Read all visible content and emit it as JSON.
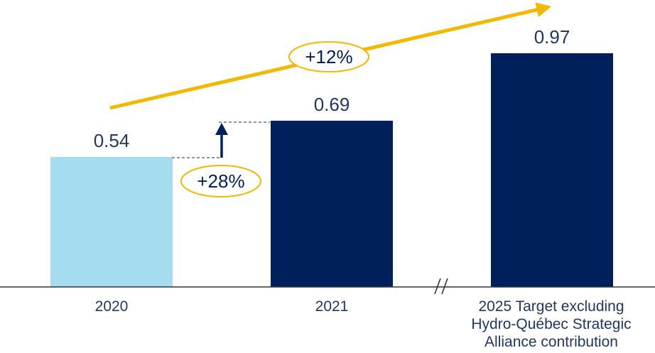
{
  "chart_data": {
    "type": "bar",
    "categories": [
      "2020",
      "2021",
      "2025 Target excluding Hydro-Québec Strategic Alliance contribution"
    ],
    "category_lines": [
      [
        "2020"
      ],
      [
        "2021"
      ],
      [
        "2025 Target excluding",
        "Hydro-Québec Strategic",
        "Alliance contribution"
      ]
    ],
    "values": [
      0.54,
      0.69,
      0.97
    ],
    "value_labels": [
      "0.54",
      "0.69",
      "0.97"
    ],
    "ylim": [
      0,
      1.1
    ],
    "axis_break_after_category": 1,
    "grid": false,
    "legend": "none",
    "annotations": [
      {
        "text": "+28%",
        "from_category": 0,
        "to_category": 1,
        "kind": "bar-to-bar increase"
      },
      {
        "text": "+12%",
        "from_category": 0,
        "to_category": 2,
        "kind": "trend arrow"
      }
    ],
    "colors": {
      "bar_2020": "#a6dcef",
      "bar_2021": "#00205b",
      "bar_2025": "#00205b",
      "trend_arrow": "#f5b800",
      "badge_border": "#f5b800",
      "value_text": "#1f3864",
      "axis": "#333333"
    }
  }
}
